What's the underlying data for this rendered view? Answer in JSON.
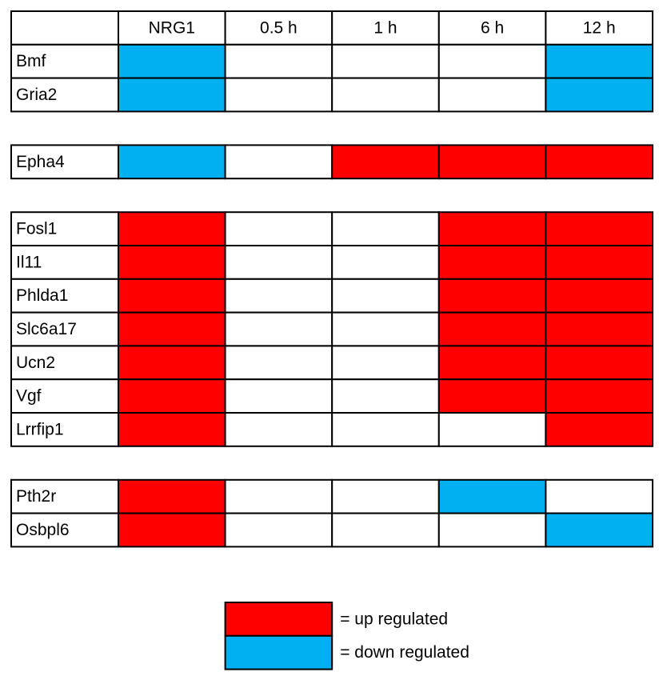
{
  "header": {
    "columns": [
      "NRG1",
      "0.5 h",
      "1 h",
      "6 h",
      "12 h"
    ]
  },
  "groups": [
    {
      "rows": [
        {
          "gene": "Bmf",
          "cells": [
            "down",
            null,
            null,
            null,
            "down"
          ]
        },
        {
          "gene": "Gria2",
          "cells": [
            "down",
            null,
            null,
            null,
            "down"
          ]
        }
      ]
    },
    {
      "rows": [
        {
          "gene": "Epha4",
          "cells": [
            "down",
            null,
            "up",
            "up",
            "up"
          ]
        }
      ]
    },
    {
      "rows": [
        {
          "gene": "Fosl1",
          "cells": [
            "up",
            null,
            null,
            "up",
            "up"
          ]
        },
        {
          "gene": "Il11",
          "cells": [
            "up",
            null,
            null,
            "up",
            "up"
          ]
        },
        {
          "gene": "Phlda1",
          "cells": [
            "up",
            null,
            null,
            "up",
            "up"
          ]
        },
        {
          "gene": "Slc6a17",
          "cells": [
            "up",
            null,
            null,
            "up",
            "up"
          ]
        },
        {
          "gene": "Ucn2",
          "cells": [
            "up",
            null,
            null,
            "up",
            "up"
          ]
        },
        {
          "gene": "Vgf",
          "cells": [
            "up",
            null,
            null,
            "up",
            "up"
          ]
        },
        {
          "gene": "Lrrfip1",
          "cells": [
            "up",
            null,
            null,
            null,
            "up"
          ]
        }
      ]
    },
    {
      "rows": [
        {
          "gene": "Pth2r",
          "cells": [
            "up",
            null,
            null,
            "down",
            null
          ]
        },
        {
          "gene": "Osbpl6",
          "cells": [
            "up",
            null,
            null,
            null,
            "down"
          ]
        }
      ]
    }
  ],
  "legend": [
    {
      "key": "up",
      "color": "#ff0000",
      "label": "= up regulated"
    },
    {
      "key": "down",
      "color": "#00b0f0",
      "label": "= down regulated"
    }
  ]
}
